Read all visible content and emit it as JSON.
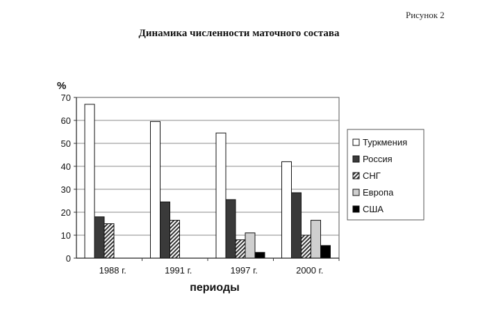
{
  "figure_label": "Рисунок 2",
  "chart_data": {
    "type": "bar",
    "title": "Динамика численности маточного состава",
    "ylabel": "%",
    "xlabel": "периоды",
    "ylim": [
      0,
      70
    ],
    "yticks": [
      0,
      10,
      20,
      30,
      40,
      50,
      60,
      70
    ],
    "grid": true,
    "legend_position": "right",
    "categories": [
      "1988 г.",
      "1991 г.",
      "1997 г.",
      "2000 г."
    ],
    "series": [
      {
        "name": "Туркмения",
        "pattern": "white",
        "values": [
          67,
          59.5,
          54.5,
          42
        ]
      },
      {
        "name": "Россия",
        "pattern": "dark",
        "values": [
          18,
          24.5,
          25.5,
          28.5
        ]
      },
      {
        "name": "СНГ",
        "pattern": "hatch",
        "values": [
          15,
          16.5,
          8,
          10
        ]
      },
      {
        "name": "Европа",
        "pattern": "light",
        "values": [
          0,
          0,
          11,
          16.5
        ]
      },
      {
        "name": "США",
        "pattern": "black",
        "values": [
          0,
          0,
          2.5,
          5.5
        ]
      }
    ]
  }
}
